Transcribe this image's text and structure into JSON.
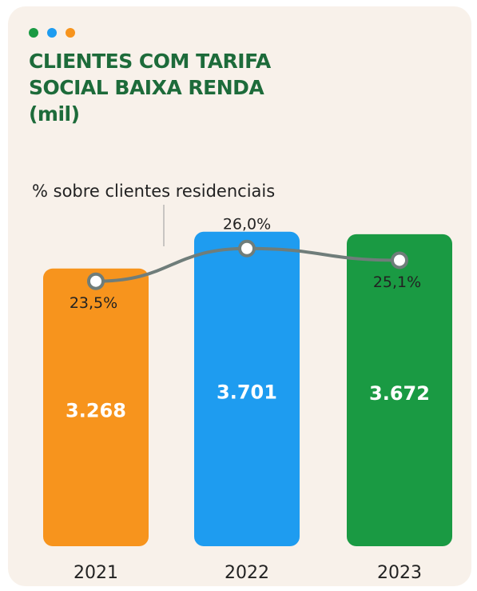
{
  "chart_data": {
    "type": "bar",
    "title": "CLIENTES COM TARIFA SOCIAL BAIXA RENDA (mil)",
    "annotation": "% sobre clientes residenciais",
    "categories": [
      "2021",
      "2022",
      "2023"
    ],
    "ylim": [
      0,
      4000
    ],
    "y2lim": [
      20,
      28
    ],
    "series": [
      {
        "values": [
          3268,
          3701,
          3672
        ],
        "value_labels": [
          "3.268",
          "3.701",
          "3.672"
        ],
        "colors": [
          "#f7941d",
          "#1e9cf0",
          "#1a9a43"
        ]
      },
      {
        "type": "line",
        "axis": "y2",
        "color": "#6f7d7a",
        "values": [
          23.5,
          26.0,
          25.1
        ],
        "value_labels": [
          "23,5%",
          "26,0%",
          "25,1%"
        ]
      }
    ]
  }
}
